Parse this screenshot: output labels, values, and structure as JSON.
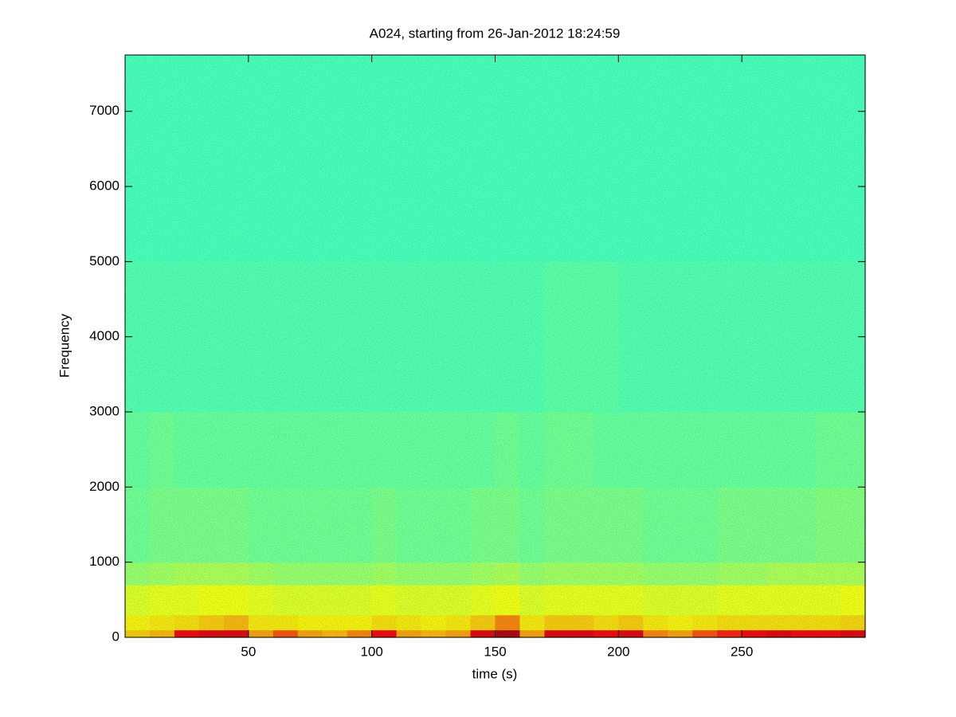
{
  "chart_data": {
    "type": "spectrogram",
    "title": "A024, starting from 26-Jan-2012 18:24:59",
    "x_label": "time (s)",
    "y_label": "Frequency",
    "xlim": [
      0,
      300
    ],
    "ylim": [
      0,
      7750
    ],
    "xticks": [
      50,
      100,
      150,
      200,
      250
    ],
    "yticks": [
      0,
      1000,
      2000,
      3000,
      4000,
      5000,
      6000,
      7000
    ],
    "colormap": "jet",
    "clim": [
      0,
      1
    ],
    "xbins": [
      0,
      10,
      20,
      30,
      40,
      50,
      60,
      70,
      80,
      90,
      100,
      110,
      120,
      130,
      140,
      150,
      160,
      170,
      180,
      190,
      200,
      210,
      220,
      230,
      240,
      250,
      260,
      270,
      280,
      290,
      300
    ],
    "ybins": [
      0,
      100,
      300,
      700,
      1000,
      2000,
      3000,
      5000,
      7750
    ],
    "z": [
      [
        0.68,
        0.7,
        0.88,
        0.9,
        0.9,
        0.72,
        0.8,
        0.72,
        0.7,
        0.75,
        0.88,
        0.72,
        0.7,
        0.72,
        0.9,
        0.95,
        0.72,
        0.9,
        0.9,
        0.88,
        0.9,
        0.75,
        0.72,
        0.8,
        0.85,
        0.88,
        0.9,
        0.88,
        0.88,
        0.9
      ],
      [
        0.64,
        0.65,
        0.66,
        0.68,
        0.7,
        0.65,
        0.65,
        0.64,
        0.64,
        0.64,
        0.66,
        0.65,
        0.64,
        0.65,
        0.68,
        0.75,
        0.65,
        0.68,
        0.68,
        0.66,
        0.68,
        0.65,
        0.64,
        0.65,
        0.66,
        0.66,
        0.66,
        0.66,
        0.66,
        0.67
      ],
      [
        0.6,
        0.61,
        0.61,
        0.62,
        0.62,
        0.61,
        0.6,
        0.6,
        0.6,
        0.6,
        0.61,
        0.6,
        0.6,
        0.6,
        0.61,
        0.62,
        0.6,
        0.61,
        0.61,
        0.61,
        0.61,
        0.6,
        0.6,
        0.6,
        0.61,
        0.61,
        0.61,
        0.61,
        0.61,
        0.62
      ],
      [
        0.53,
        0.54,
        0.55,
        0.55,
        0.55,
        0.54,
        0.53,
        0.53,
        0.53,
        0.53,
        0.54,
        0.53,
        0.53,
        0.53,
        0.54,
        0.55,
        0.53,
        0.54,
        0.54,
        0.54,
        0.54,
        0.53,
        0.53,
        0.53,
        0.54,
        0.54,
        0.55,
        0.55,
        0.55,
        0.55
      ],
      [
        0.49,
        0.5,
        0.5,
        0.5,
        0.5,
        0.49,
        0.49,
        0.49,
        0.49,
        0.49,
        0.5,
        0.49,
        0.49,
        0.49,
        0.5,
        0.5,
        0.49,
        0.5,
        0.5,
        0.5,
        0.5,
        0.49,
        0.49,
        0.49,
        0.5,
        0.5,
        0.5,
        0.5,
        0.51,
        0.51
      ],
      [
        0.48,
        0.49,
        0.48,
        0.48,
        0.48,
        0.48,
        0.48,
        0.48,
        0.48,
        0.48,
        0.48,
        0.48,
        0.48,
        0.48,
        0.48,
        0.49,
        0.48,
        0.49,
        0.49,
        0.48,
        0.48,
        0.48,
        0.48,
        0.48,
        0.48,
        0.48,
        0.48,
        0.48,
        0.49,
        0.49
      ],
      [
        0.46,
        0.46,
        0.46,
        0.46,
        0.46,
        0.46,
        0.46,
        0.46,
        0.46,
        0.46,
        0.46,
        0.46,
        0.46,
        0.46,
        0.46,
        0.46,
        0.46,
        0.47,
        0.47,
        0.47,
        0.46,
        0.46,
        0.46,
        0.46,
        0.46,
        0.46,
        0.46,
        0.46,
        0.46,
        0.46
      ],
      [
        0.45,
        0.45,
        0.45,
        0.45,
        0.45,
        0.45,
        0.45,
        0.45,
        0.45,
        0.45,
        0.45,
        0.45,
        0.45,
        0.45,
        0.45,
        0.45,
        0.45,
        0.45,
        0.45,
        0.45,
        0.45,
        0.45,
        0.45,
        0.45,
        0.45,
        0.45,
        0.45,
        0.45,
        0.45,
        0.45
      ]
    ]
  }
}
